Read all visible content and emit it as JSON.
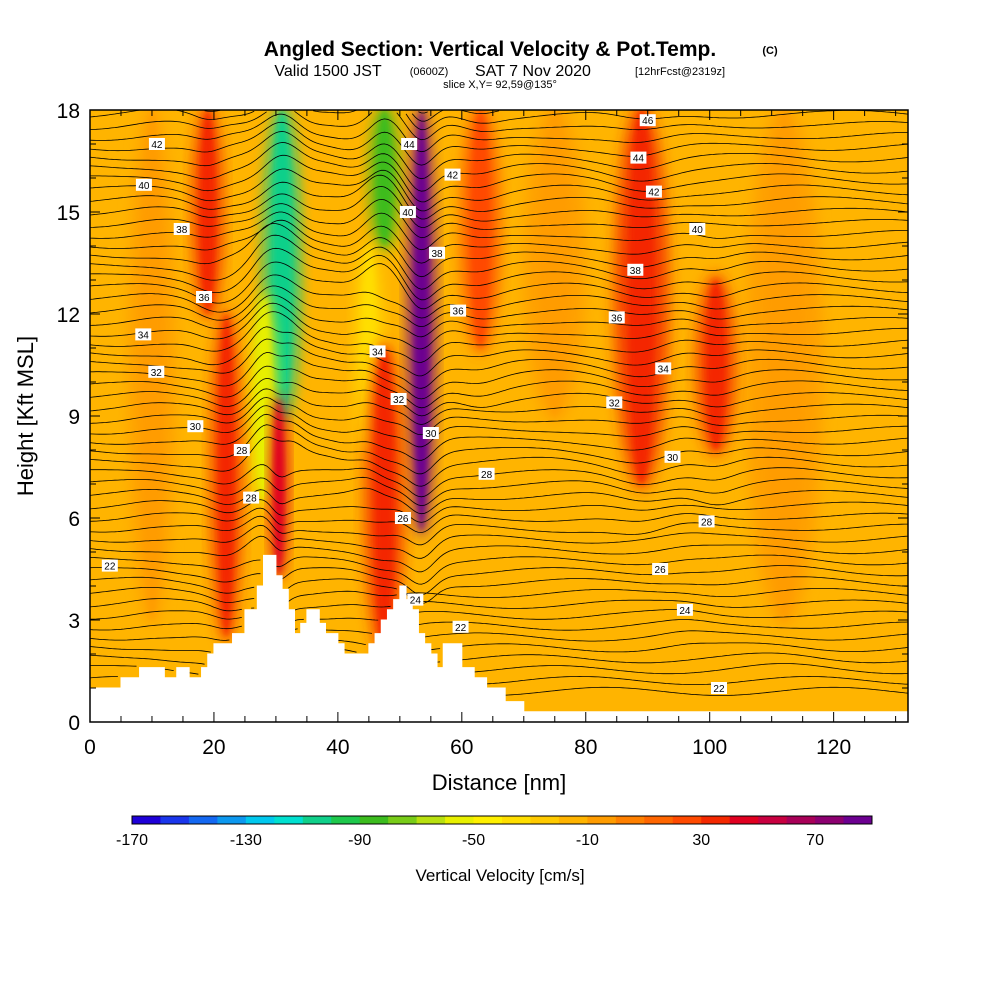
{
  "figure": {
    "title": "Angled Section: Vertical Velocity & Pot.Temp.",
    "title_units": "(C)",
    "valid_prefix": "Valid 1500 JST",
    "valid_zulu": "(0600Z)",
    "valid_date": "SAT 7 Nov 2020",
    "forecast_info": "[12hrFcst@2319z]",
    "slice_info": "slice X,Y= 92,59@135°"
  },
  "chart_data": {
    "type": "heatmap",
    "xlabel": "Distance [nm]",
    "ylabel": "Height [Kft MSL]",
    "xlim": [
      0,
      132
    ],
    "ylim": [
      0,
      18
    ],
    "x_ticks": [
      0,
      20,
      40,
      60,
      80,
      100,
      120
    ],
    "y_ticks": [
      0,
      3,
      6,
      9,
      12,
      15,
      18
    ],
    "colorbar": {
      "title": "Vertical Velocity [cm/s]",
      "min": -170,
      "max": 90,
      "step": 10,
      "tick_labels": [
        -170,
        -130,
        -90,
        -50,
        -10,
        30,
        70
      ],
      "colors": [
        "#1e00d8",
        "#1a36ec",
        "#1468f2",
        "#0c98ef",
        "#00c8ee",
        "#00e0d0",
        "#10d08a",
        "#1ec84c",
        "#3cbc1e",
        "#78cc18",
        "#b8e010",
        "#e8f000",
        "#fff000",
        "#ffde00",
        "#ffca00",
        "#ffb400",
        "#ff9c00",
        "#ff8000",
        "#ff6600",
        "#ff4a00",
        "#f42800",
        "#e00020",
        "#c80040",
        "#a80058",
        "#8c0070",
        "#6c0090"
      ]
    },
    "terrain_profile": [
      [
        0,
        1.0
      ],
      [
        5,
        1.0
      ],
      [
        5,
        1.3
      ],
      [
        8,
        1.3
      ],
      [
        8,
        1.6
      ],
      [
        12,
        1.6
      ],
      [
        12,
        1.3
      ],
      [
        14,
        1.3
      ],
      [
        14,
        1.6
      ],
      [
        16,
        1.6
      ],
      [
        16,
        1.3
      ],
      [
        18,
        1.3
      ],
      [
        18,
        1.6
      ],
      [
        19,
        1.6
      ],
      [
        19,
        2.0
      ],
      [
        20,
        2.0
      ],
      [
        20,
        2.3
      ],
      [
        23,
        2.3
      ],
      [
        23,
        2.6
      ],
      [
        25,
        2.6
      ],
      [
        25,
        3.3
      ],
      [
        27,
        3.3
      ],
      [
        27,
        4.0
      ],
      [
        28,
        4.0
      ],
      [
        28,
        4.9
      ],
      [
        30,
        4.9
      ],
      [
        30,
        4.3
      ],
      [
        31,
        4.3
      ],
      [
        31,
        3.9
      ],
      [
        32,
        3.9
      ],
      [
        32,
        3.3
      ],
      [
        33,
        3.3
      ],
      [
        33,
        2.6
      ],
      [
        34,
        2.6
      ],
      [
        34,
        2.9
      ],
      [
        35,
        2.9
      ],
      [
        35,
        3.3
      ],
      [
        37,
        3.3
      ],
      [
        37,
        2.9
      ],
      [
        38,
        2.9
      ],
      [
        38,
        2.6
      ],
      [
        40,
        2.6
      ],
      [
        40,
        2.3
      ],
      [
        41,
        2.3
      ],
      [
        41,
        2.0
      ],
      [
        45,
        2.0
      ],
      [
        45,
        2.3
      ],
      [
        46,
        2.3
      ],
      [
        46,
        2.6
      ],
      [
        47,
        2.6
      ],
      [
        47,
        3.0
      ],
      [
        48,
        3.0
      ],
      [
        48,
        3.3
      ],
      [
        49,
        3.3
      ],
      [
        49,
        3.6
      ],
      [
        50,
        3.6
      ],
      [
        50,
        4.0
      ],
      [
        51,
        4.0
      ],
      [
        51,
        3.6
      ],
      [
        52,
        3.6
      ],
      [
        52,
        3.3
      ],
      [
        53,
        3.3
      ],
      [
        53,
        2.6
      ],
      [
        54,
        2.6
      ],
      [
        54,
        2.3
      ],
      [
        55,
        2.3
      ],
      [
        55,
        2.0
      ],
      [
        56,
        2.0
      ],
      [
        56,
        1.6
      ],
      [
        57,
        1.6
      ],
      [
        57,
        2.3
      ],
      [
        60,
        2.3
      ],
      [
        60,
        1.6
      ],
      [
        62,
        1.6
      ],
      [
        62,
        1.3
      ],
      [
        64,
        1.3
      ],
      [
        64,
        1.0
      ],
      [
        67,
        1.0
      ],
      [
        67,
        0.6
      ],
      [
        70,
        0.6
      ],
      [
        70,
        0.3
      ],
      [
        132,
        0.3
      ]
    ],
    "updrafts": [
      {
        "x": 53.5,
        "y_min": 5.6,
        "y_max": 18,
        "x_halfwidth": 1.8,
        "value": 90
      },
      {
        "x": 30.5,
        "y_min": 4.3,
        "y_max": 9.5,
        "x_halfwidth": 1.2,
        "value": 45
      },
      {
        "x": 22.0,
        "y_min": 2.5,
        "y_max": 12.0,
        "x_halfwidth": 2.0,
        "value": 32
      },
      {
        "x": 47.5,
        "y_min": 2.0,
        "y_max": 11.0,
        "x_halfwidth": 2.5,
        "value": 30
      },
      {
        "x": 89.0,
        "y_min": 7.0,
        "y_max": 18,
        "x_halfwidth": 3.5,
        "value": 38
      },
      {
        "x": 101.0,
        "y_min": 8.0,
        "y_max": 13.0,
        "x_halfwidth": 2.5,
        "value": 30
      },
      {
        "x": 19.0,
        "y_min": 12.0,
        "y_max": 18,
        "x_halfwidth": 2.0,
        "value": 32
      },
      {
        "x": 63.0,
        "y_min": 11.0,
        "y_max": 18,
        "x_halfwidth": 2.5,
        "value": 28
      }
    ],
    "downdrafts": [
      {
        "x": 31.0,
        "y_min": 9.0,
        "y_max": 18,
        "x_halfwidth": 2.5,
        "value": -110
      },
      {
        "x": 28.0,
        "y_min": 6.5,
        "y_max": 12.5,
        "x_halfwidth": 1.8,
        "value": -55
      },
      {
        "x": 47.5,
        "y_min": 14.0,
        "y_max": 18,
        "x_halfwidth": 2.0,
        "value": -90
      },
      {
        "x": 45.0,
        "y_min": 8.0,
        "y_max": 14.0,
        "x_halfwidth": 1.8,
        "value": -35
      },
      {
        "x": 38.0,
        "y_min": 9.0,
        "y_max": 18,
        "x_halfwidth": 2.0,
        "value": -15
      },
      {
        "x": 96.0,
        "y_min": 3.5,
        "y_max": 12.0,
        "x_halfwidth": 3.0,
        "value": -12
      },
      {
        "x": 112.0,
        "y_min": 3.0,
        "y_max": 18,
        "x_halfwidth": 5.0,
        "value": -10
      },
      {
        "x": 75.0,
        "y_min": 9.0,
        "y_max": 18,
        "x_halfwidth": 4.0,
        "value": -10
      },
      {
        "x": 10.0,
        "y_min": 3.0,
        "y_max": 18,
        "x_halfwidth": 3.0,
        "value": -10
      }
    ],
    "isentrope_labels": [
      {
        "text": "46",
        "x": 90.0,
        "y": 17.7
      },
      {
        "text": "44",
        "x": 51.5,
        "y": 17.0
      },
      {
        "text": "44",
        "x": 88.5,
        "y": 16.6
      },
      {
        "text": "42",
        "x": 10.8,
        "y": 17.0
      },
      {
        "text": "42",
        "x": 58.5,
        "y": 16.1
      },
      {
        "text": "42",
        "x": 91.0,
        "y": 15.6
      },
      {
        "text": "40",
        "x": 8.7,
        "y": 15.8
      },
      {
        "text": "40",
        "x": 51.3,
        "y": 15.0
      },
      {
        "text": "40",
        "x": 98.0,
        "y": 14.5
      },
      {
        "text": "38",
        "x": 14.8,
        "y": 14.5
      },
      {
        "text": "38",
        "x": 56.0,
        "y": 13.8
      },
      {
        "text": "38",
        "x": 88.0,
        "y": 13.3
      },
      {
        "text": "36",
        "x": 18.4,
        "y": 12.5
      },
      {
        "text": "36",
        "x": 59.4,
        "y": 12.1
      },
      {
        "text": "36",
        "x": 85.0,
        "y": 11.9
      },
      {
        "text": "34",
        "x": 8.6,
        "y": 11.4
      },
      {
        "text": "34",
        "x": 46.4,
        "y": 10.9
      },
      {
        "text": "34",
        "x": 92.5,
        "y": 10.4
      },
      {
        "text": "32",
        "x": 10.7,
        "y": 10.3
      },
      {
        "text": "32",
        "x": 49.8,
        "y": 9.5
      },
      {
        "text": "32",
        "x": 84.6,
        "y": 9.4
      },
      {
        "text": "30",
        "x": 17.0,
        "y": 8.7
      },
      {
        "text": "30",
        "x": 55.0,
        "y": 8.5
      },
      {
        "text": "30",
        "x": 94.0,
        "y": 7.8
      },
      {
        "text": "28",
        "x": 24.5,
        "y": 8.0
      },
      {
        "text": "28",
        "x": 64.0,
        "y": 7.3
      },
      {
        "text": "28",
        "x": 26.0,
        "y": 6.6
      },
      {
        "text": "28",
        "x": 99.5,
        "y": 5.9
      },
      {
        "text": "26",
        "x": 50.5,
        "y": 6.0
      },
      {
        "text": "26",
        "x": 92.0,
        "y": 4.5
      },
      {
        "text": "24",
        "x": 52.5,
        "y": 3.6
      },
      {
        "text": "24",
        "x": 96.0,
        "y": 3.3
      },
      {
        "text": "22",
        "x": 3.2,
        "y": 4.6
      },
      {
        "text": "22",
        "x": 59.8,
        "y": 2.8
      },
      {
        "text": "22",
        "x": 101.5,
        "y": 1.0
      }
    ]
  }
}
